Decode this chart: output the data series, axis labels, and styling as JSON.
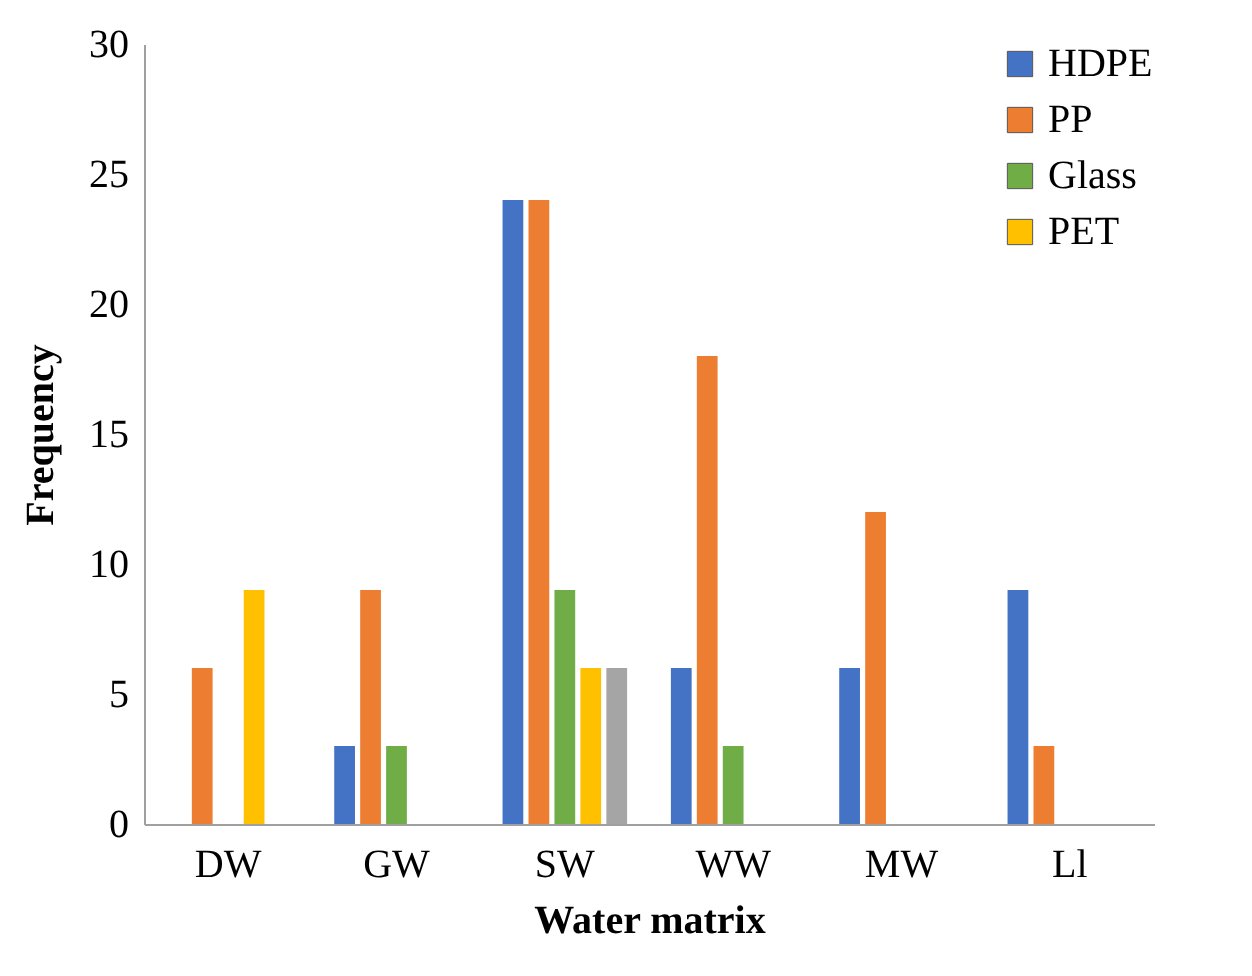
{
  "chart_data": {
    "type": "bar",
    "xlabel": "Water matrix",
    "ylabel": "Frequency",
    "categories": [
      "DW",
      "GW",
      "SW",
      "WW",
      "MW",
      "Ll"
    ],
    "series": [
      {
        "name": "HDPE",
        "color": "#4472c4",
        "values": [
          0,
          3,
          24,
          6,
          6,
          9
        ]
      },
      {
        "name": "PP",
        "color": "#ed7d31",
        "values": [
          6,
          9,
          24,
          18,
          12,
          3
        ]
      },
      {
        "name": "Glass",
        "color": "#70ad47",
        "values": [
          0,
          3,
          9,
          3,
          0,
          0
        ]
      },
      {
        "name": "PET",
        "color": "#ffc000",
        "values": [
          9,
          0,
          6,
          0,
          0,
          0
        ]
      },
      {
        "color": "#a5a5a5",
        "values": [
          0,
          0,
          6,
          0,
          0,
          0
        ]
      }
    ],
    "ylim": [
      0,
      30
    ],
    "yticks": [
      0,
      5,
      10,
      15,
      20,
      25,
      30
    ],
    "grid": false,
    "legend": "top right"
  }
}
